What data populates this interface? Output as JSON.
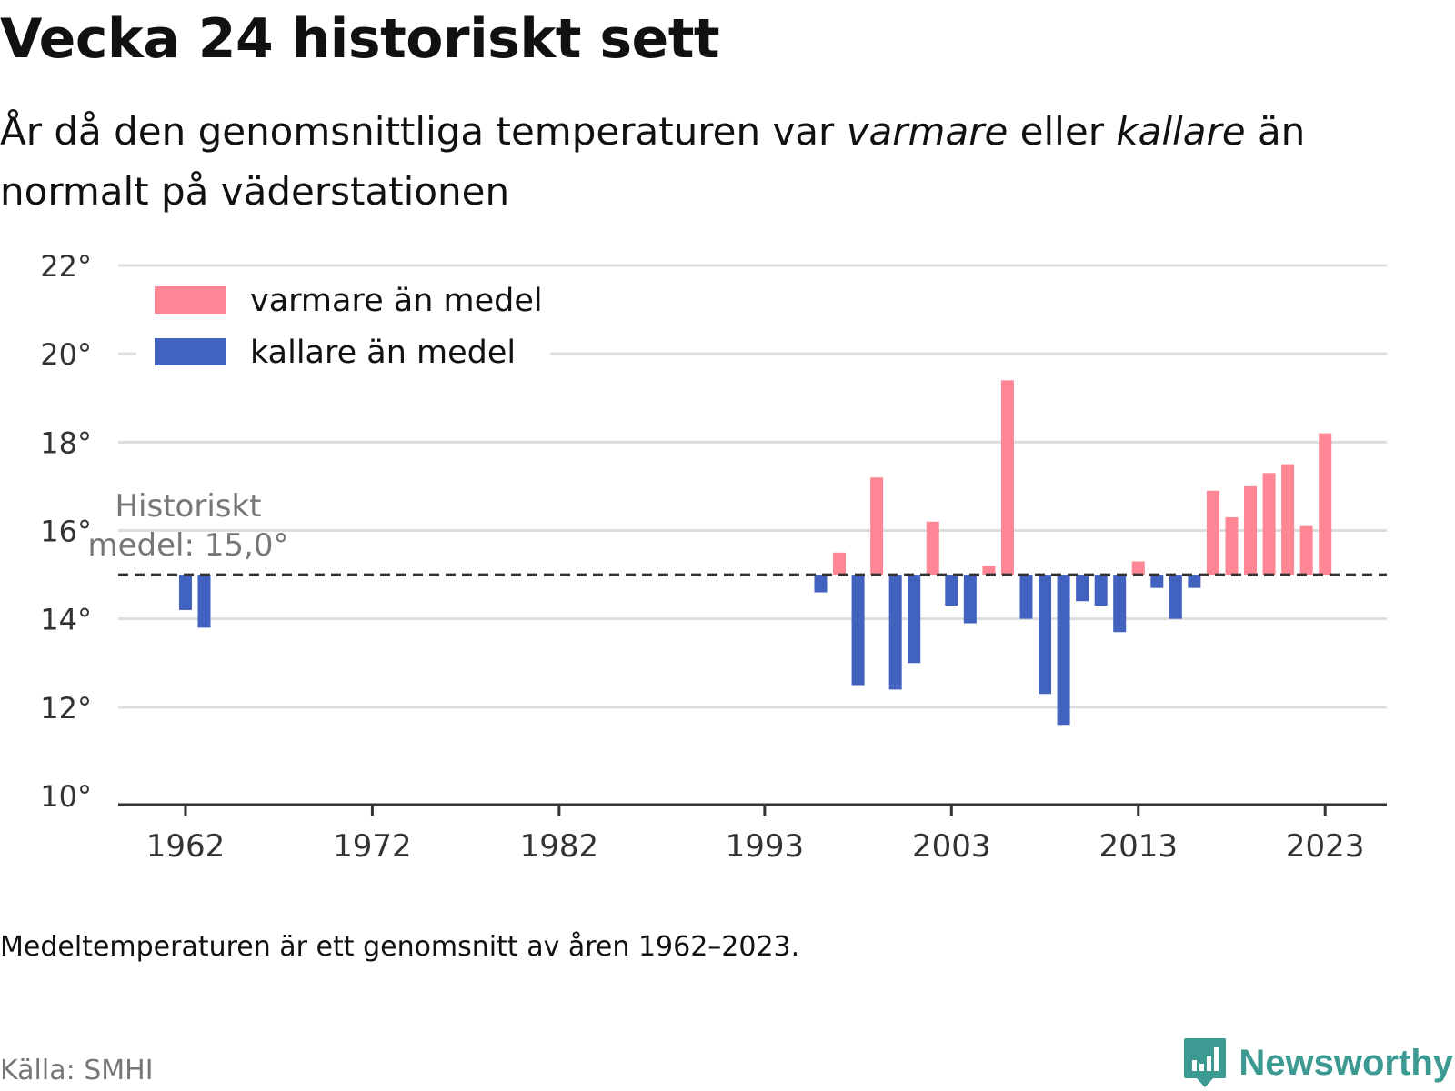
{
  "header": {
    "title": "Vecka 24 historiskt sett",
    "subtitle_part1": "År då den genomsnittliga temperaturen var",
    "subtitle_warm": "varmare",
    "subtitle_or": "eller",
    "subtitle_cold": "kallare",
    "subtitle_part2": "än normalt på väderstationen"
  },
  "footer": {
    "note": "Medeltemperaturen är ett genomsnitt av åren 1962–2023.",
    "source": "Källa: SMHI",
    "brand": "Newsworthy",
    "brand_icon": "newsworthy-logo-icon"
  },
  "colors": {
    "warm": "#ff8795",
    "cold": "#4262bf",
    "grid": "#dddddd",
    "axis": "#333333",
    "mean_line": "#333333",
    "annotation": "#777777",
    "brand": "#3c9a93"
  },
  "chart_data": {
    "type": "bar",
    "ylim": [
      10,
      22
    ],
    "yticks": [
      10,
      12,
      14,
      16,
      18,
      20,
      22
    ],
    "ytick_labels": [
      "10°",
      "12°",
      "14°",
      "16°",
      "18°",
      "20°",
      "22°"
    ],
    "xlim": [
      1958.4,
      2026.3
    ],
    "xticks": [
      1962,
      1972,
      1982,
      1993,
      2003,
      2013,
      2023
    ],
    "xtick_labels": [
      "1962",
      "1972",
      "1982",
      "1993",
      "2003",
      "2013",
      "2023"
    ],
    "grid": true,
    "baseline": 15.0,
    "baseline_label_line1": "Historiskt",
    "baseline_label_line2": "medel: 15,0°",
    "legend": {
      "position": "top-left",
      "entries": [
        {
          "label": "varmare än medel",
          "color": "#ff8795"
        },
        {
          "label": "kallare än medel",
          "color": "#4262bf"
        }
      ]
    },
    "x": [
      1962,
      1963,
      1996,
      1997,
      1998,
      1999,
      2000,
      2001,
      2002,
      2003,
      2004,
      2005,
      2006,
      2007,
      2008,
      2009,
      2010,
      2011,
      2012,
      2013,
      2014,
      2015,
      2016,
      2017,
      2018,
      2019,
      2020,
      2021,
      2022,
      2023
    ],
    "values": [
      14.2,
      13.8,
      14.6,
      15.5,
      12.5,
      17.2,
      12.4,
      13.0,
      16.2,
      14.3,
      13.9,
      15.2,
      19.4,
      14.0,
      12.3,
      11.6,
      14.4,
      14.3,
      13.7,
      15.3,
      14.7,
      14.0,
      14.7,
      16.9,
      16.3,
      17.0,
      17.3,
      17.5,
      16.1,
      18.2
    ]
  }
}
